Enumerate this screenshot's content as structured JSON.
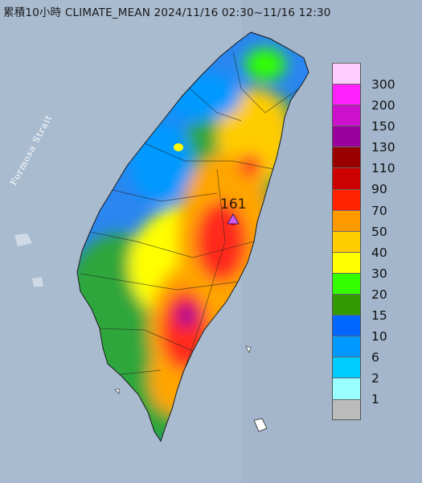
{
  "title": "累積10小時 CLIMATE_MEAN 2024/11/16 02:30~11/16 12:30",
  "strait_label": "Formosa Strait",
  "peak": {
    "value": "161"
  },
  "colors": {
    "sea": "#a9bbcf",
    "land_north": "#2a86f0",
    "land_mid": "#2fa63a",
    "land_central": "#ffa500",
    "land_heavy": "#ff2a1a",
    "peak_marker": "#cf5cf0"
  },
  "legend": {
    "items": [
      {
        "label": "300",
        "color": "#ffccff"
      },
      {
        "label": "200",
        "color": "#ff22ff"
      },
      {
        "label": "150",
        "color": "#cc11cc"
      },
      {
        "label": "130",
        "color": "#99009c"
      },
      {
        "label": "110",
        "color": "#990000"
      },
      {
        "label": "90",
        "color": "#cc0000"
      },
      {
        "label": "70",
        "color": "#ff2200"
      },
      {
        "label": "50",
        "color": "#ff9900"
      },
      {
        "label": "40",
        "color": "#ffcc00"
      },
      {
        "label": "30",
        "color": "#ffff00"
      },
      {
        "label": "20",
        "color": "#33ff00"
      },
      {
        "label": "15",
        "color": "#339900"
      },
      {
        "label": "10",
        "color": "#0066ff"
      },
      {
        "label": "6",
        "color": "#0099ff"
      },
      {
        "label": "2",
        "color": "#00ccff"
      },
      {
        "label": "1",
        "color": "#99ffff"
      },
      {
        "label": "",
        "color": "#bbbbbb"
      }
    ]
  }
}
